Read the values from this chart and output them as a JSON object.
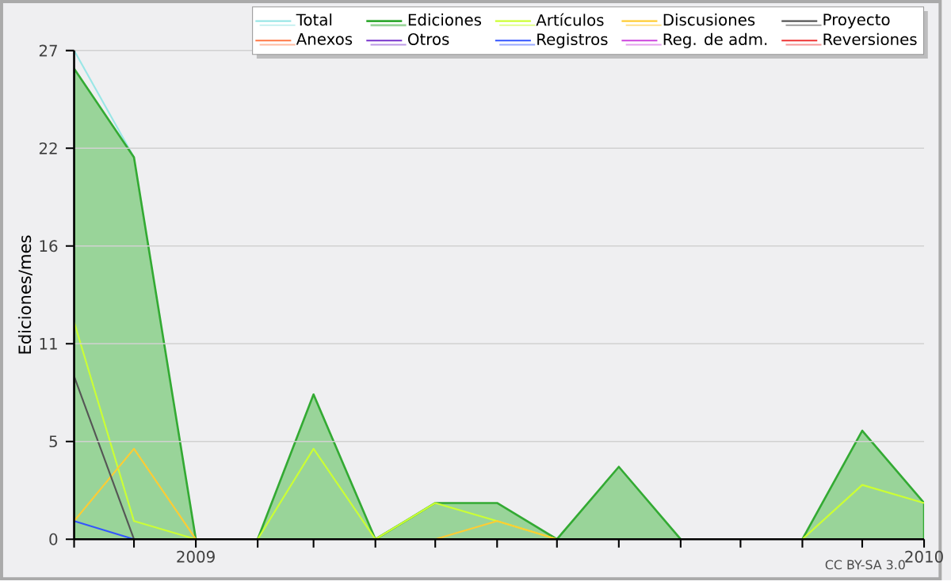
{
  "chart_data": {
    "type": "line",
    "ylabel": "Ediciones/mes",
    "annotations": [
      "CC BY-SA 3.0"
    ],
    "x": [
      "2008-11",
      "2008-12",
      "2009-01",
      "2009-02",
      "2009-03",
      "2009-04",
      "2009-05",
      "2009-06",
      "2009-07",
      "2009-08",
      "2009-09",
      "2009-10",
      "2009-11",
      "2009-12",
      "2010-01"
    ],
    "xlim": [
      "2008-11",
      "2010-01"
    ],
    "xticks": [
      {
        "value": "2008-11",
        "label": null
      },
      {
        "value": "2008-12",
        "label": null
      },
      {
        "value": "2009-01",
        "label": "2009"
      },
      {
        "value": "2009-02",
        "label": null
      },
      {
        "value": "2009-03",
        "label": null
      },
      {
        "value": "2009-04",
        "label": null
      },
      {
        "value": "2009-05",
        "label": null
      },
      {
        "value": "2009-06",
        "label": null
      },
      {
        "value": "2009-07",
        "label": null
      },
      {
        "value": "2009-08",
        "label": null
      },
      {
        "value": "2009-09",
        "label": null
      },
      {
        "value": "2009-10",
        "label": null
      },
      {
        "value": "2009-11",
        "label": null
      },
      {
        "value": "2009-12",
        "label": null
      },
      {
        "value": "2010-01",
        "label": "2010"
      }
    ],
    "ylim": [
      0,
      27
    ],
    "yticks": [
      0,
      {
        "value": 5.4,
        "label": "5"
      },
      {
        "value": 10.8,
        "label": "11"
      },
      {
        "value": 16.2,
        "label": "16"
      },
      {
        "value": 21.6,
        "label": "22"
      },
      27
    ],
    "grid": "y",
    "legend": "top right",
    "series": [
      {
        "name": "Total",
        "color": "#99e6e6",
        "values": [
          27,
          21.1,
          null,
          null,
          null,
          null,
          null,
          null,
          null,
          null,
          null,
          null,
          null,
          null,
          null
        ]
      },
      {
        "name": "Ediciones",
        "type": "area",
        "color": "#33aa33",
        "values": [
          26,
          21.1,
          0,
          0,
          8,
          0,
          2,
          2,
          0,
          4,
          0,
          0,
          0,
          6,
          2
        ]
      },
      {
        "name": "Artículos",
        "color": "#ccff33",
        "values": [
          12,
          1,
          0,
          0,
          5,
          0,
          2,
          1,
          0,
          null,
          null,
          null,
          0,
          3,
          2
        ]
      },
      {
        "name": "Discusiones",
        "color": "#ffcc33",
        "values": [
          1,
          5,
          0,
          null,
          null,
          null,
          0,
          1,
          0,
          null,
          null,
          null,
          null,
          null,
          null
        ]
      },
      {
        "name": "Proyecto",
        "color": "#555555",
        "values": [
          9,
          0,
          null,
          null,
          null,
          null,
          null,
          null,
          null,
          null,
          null,
          null,
          null,
          null,
          null
        ]
      },
      {
        "name": "Anexos",
        "color": "#ff7744",
        "values": [
          null,
          null,
          null,
          null,
          null,
          null,
          null,
          null,
          null,
          null,
          null,
          null,
          null,
          null,
          null
        ]
      },
      {
        "name": "Otros",
        "color": "#7733cc",
        "values": [
          null,
          null,
          null,
          null,
          null,
          null,
          null,
          null,
          null,
          null,
          null,
          null,
          null,
          null,
          null
        ]
      },
      {
        "name": "Registros",
        "color": "#3355ff",
        "values": [
          1,
          0,
          null,
          null,
          null,
          null,
          null,
          null,
          null,
          null,
          null,
          null,
          null,
          null,
          null
        ]
      },
      {
        "name": "Reg. de adm.",
        "color": "#cc44dd",
        "values": [
          null,
          null,
          null,
          null,
          null,
          null,
          null,
          null,
          null,
          null,
          null,
          null,
          null,
          null,
          null
        ]
      },
      {
        "name": "Reversiones",
        "color": "#ee3333",
        "values": [
          null,
          null,
          null,
          null,
          null,
          null,
          null,
          null,
          null,
          null,
          null,
          null,
          null,
          null,
          null
        ]
      }
    ]
  }
}
